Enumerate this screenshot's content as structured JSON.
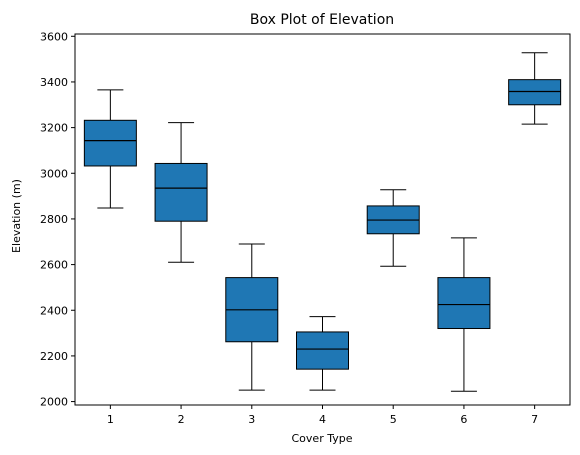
{
  "chart_data": {
    "type": "box",
    "title": "Box Plot of Elevation",
    "xlabel": "Cover Type",
    "ylabel": "Elevation (m)",
    "categories": [
      "1",
      "2",
      "3",
      "4",
      "5",
      "6",
      "7"
    ],
    "boxes": [
      {
        "category": "1",
        "whisker_low": 2848,
        "q1": 3032,
        "median": 3143,
        "q3": 3232,
        "whisker_high": 3365
      },
      {
        "category": "2",
        "whisker_low": 2610,
        "q1": 2790,
        "median": 2935,
        "q3": 3043,
        "whisker_high": 3222
      },
      {
        "category": "3",
        "whisker_low": 2050,
        "q1": 2262,
        "median": 2402,
        "q3": 2543,
        "whisker_high": 2690
      },
      {
        "category": "4",
        "whisker_low": 2050,
        "q1": 2142,
        "median": 2230,
        "q3": 2305,
        "whisker_high": 2372
      },
      {
        "category": "5",
        "whisker_low": 2593,
        "q1": 2735,
        "median": 2795,
        "q3": 2857,
        "whisker_high": 2928
      },
      {
        "category": "6",
        "whisker_low": 2045,
        "q1": 2320,
        "median": 2425,
        "q3": 2543,
        "whisker_high": 2717
      },
      {
        "category": "7",
        "whisker_low": 3215,
        "q1": 3300,
        "median": 3358,
        "q3": 3410,
        "whisker_high": 3528
      }
    ],
    "yticks": [
      "2000",
      "2200",
      "2400",
      "2600",
      "2800",
      "3000",
      "3200",
      "3400",
      "3600"
    ],
    "ylim": [
      1985,
      3610
    ],
    "box_color": "#1f77b4",
    "grid": false
  }
}
